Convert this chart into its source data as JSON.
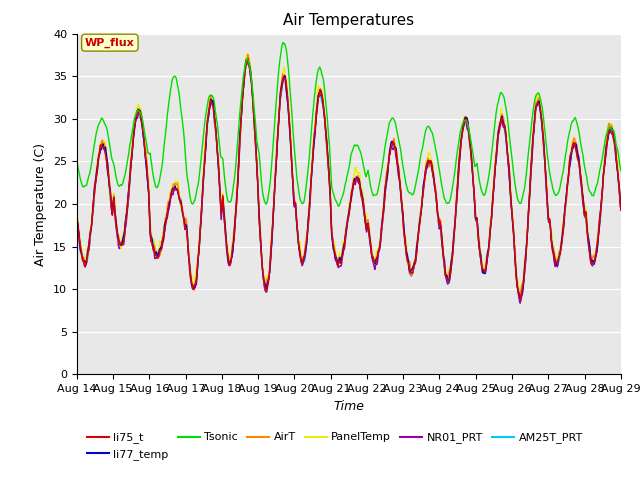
{
  "title": "Air Temperatures",
  "xlabel": "Time",
  "ylabel": "Air Temperature (C)",
  "ylim": [
    0,
    40
  ],
  "yticks": [
    0,
    5,
    10,
    15,
    20,
    25,
    30,
    35,
    40
  ],
  "xtick_labels": [
    "Aug 14",
    "Aug 15",
    "Aug 16",
    "Aug 17",
    "Aug 18",
    "Aug 19",
    "Aug 20",
    "Aug 21",
    "Aug 22",
    "Aug 23",
    "Aug 24",
    "Aug 25",
    "Aug 26",
    "Aug 27",
    "Aug 28",
    "Aug 29"
  ],
  "legend_entries": [
    "li75_t",
    "li77_temp",
    "Tsonic",
    "AirT",
    "PanelTemp",
    "NR01_PRT",
    "AM25T_PRT"
  ],
  "legend_colors": [
    "#dd0000",
    "#0000dd",
    "#00dd00",
    "#ff8800",
    "#eeee00",
    "#9900aa",
    "#00ccee"
  ],
  "annotation_text": "WP_flux",
  "annotation_bg": "#ffffcc",
  "annotation_border": "#cc0000",
  "bg_color": "#e8e8e8",
  "title_fontsize": 11,
  "label_fontsize": 9,
  "tick_fontsize": 8,
  "day_peaks": [
    27,
    31,
    22,
    32,
    37,
    35,
    33,
    23,
    27,
    25,
    30,
    30,
    32,
    27,
    29
  ],
  "day_mins": [
    13,
    15,
    14,
    10,
    13,
    10,
    13,
    13,
    13,
    12,
    11,
    12,
    9,
    13,
    13
  ],
  "tsonic_peaks": [
    30,
    31,
    35,
    33,
    37,
    39,
    36,
    27,
    30,
    29,
    30,
    33,
    33,
    30,
    29
  ],
  "tsonic_mins": [
    22,
    22,
    22,
    20,
    20,
    20,
    20,
    20,
    21,
    21,
    20,
    21,
    20,
    21,
    21
  ]
}
